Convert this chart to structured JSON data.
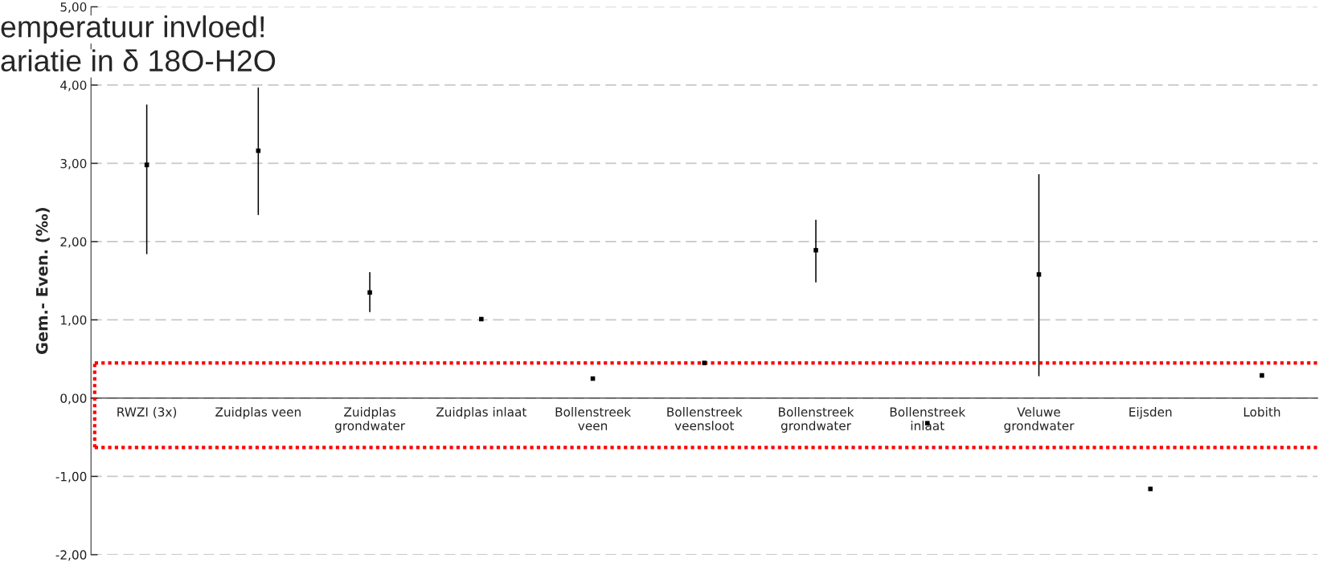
{
  "chart_data": {
    "type": "scatter",
    "categories": [
      "RWZI (3x)",
      "Zuidplas veen",
      "Zuidplas\ngrondwater",
      "Zuidplas inlaat",
      "Bollenstreek\nveen",
      "Bollenstreek\nveensloot",
      "Bollenstreek\ngrondwater",
      "Bollenstreek\ninlaat",
      "Veluwe\ngrondwater",
      "Eijsden",
      "Lobith"
    ],
    "values": [
      2.98,
      3.16,
      1.35,
      1.01,
      0.25,
      0.45,
      1.89,
      -0.32,
      1.58,
      -1.16,
      0.29
    ],
    "errors": [
      [
        1.84,
        3.75
      ],
      [
        2.34,
        3.97
      ],
      [
        1.1,
        1.61
      ],
      null,
      null,
      null,
      [
        1.48,
        2.28
      ],
      null,
      [
        0.28,
        2.86
      ],
      null,
      null
    ],
    "color": "#000000",
    "marker": "square",
    "ylabel": "Gem.- Even. (‰)",
    "ylim": [
      -2,
      5
    ],
    "yticks": [
      {
        "value": -2,
        "label": "-2,00"
      },
      {
        "value": -1,
        "label": "-1,00"
      },
      {
        "value": 0,
        "label": "0,00"
      },
      {
        "value": 1,
        "label": "1,00"
      },
      {
        "value": 2,
        "label": "2,00"
      },
      {
        "value": 3,
        "label": "3,00"
      },
      {
        "value": 4,
        "label": "4,00"
      },
      {
        "value": 5,
        "label": "5,00"
      }
    ],
    "grid": "y",
    "ref_lines": [
      {
        "axis": "y",
        "value": 0.45,
        "color": "#ff0000",
        "line_style": "dotted"
      },
      {
        "axis": "y",
        "value": -0.63,
        "color": "#ff0000",
        "line_style": "dotted"
      }
    ],
    "annotations": [
      "emperatuur invloed!",
      "ariatie in δ 18O-H2O"
    ]
  }
}
